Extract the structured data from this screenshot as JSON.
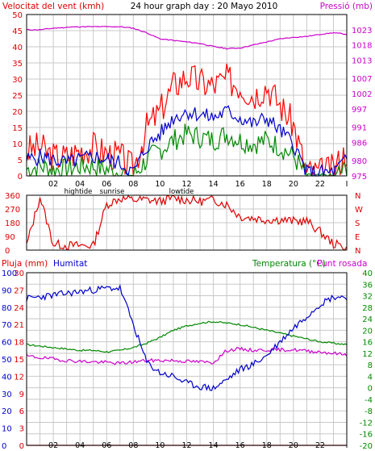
{
  "colors": {
    "wind_gust": "#ff0000",
    "wind_avg": "#0000cc",
    "wind_min": "#008800",
    "pressure": "#cc00cc",
    "direction": "#dd0000",
    "rain": "#dd0000",
    "humidity": "#0000cc",
    "temperature": "#008800",
    "dewpoint": "#cc00cc",
    "grid": "#c8c8c8",
    "frame": "#000000"
  },
  "time_ticks": [
    "02",
    "04",
    "06",
    "08",
    "10",
    "12",
    "14",
    "16",
    "18",
    "20",
    "22",
    "I"
  ],
  "markers": {
    "hightide": "hightide",
    "sunrise": "sunrise",
    "lowtide": "lowtide"
  },
  "chart_data": [
    {
      "type": "line",
      "title": "24 hour graph day : 20 Mayo 2010",
      "ylabel_left": "Velocitat del vent (kmh)",
      "ylabel_right": "Pressió (mb)",
      "ylim_left": [
        0,
        50
      ],
      "ylim_right": [
        975,
        1028
      ],
      "left_ticks": [
        "0",
        "5",
        "10",
        "15",
        "20",
        "25",
        "30",
        "35",
        "40",
        "45",
        "50"
      ],
      "right_ticks": [
        "975",
        "980",
        "986",
        "991",
        "997",
        "1002",
        "1007",
        "1013",
        "1018",
        "1023"
      ],
      "x": [
        0,
        1,
        2,
        3,
        4,
        5,
        6,
        7,
        8,
        9,
        10,
        11,
        12,
        13,
        14,
        15,
        16,
        17,
        18,
        19,
        20,
        21,
        22,
        23,
        24
      ],
      "series": [
        {
          "key": "gust",
          "values": [
            8,
            9,
            6,
            6,
            8,
            9,
            7,
            6,
            2,
            15,
            20,
            28,
            31,
            29,
            28,
            30,
            28,
            25,
            28,
            22,
            16,
            1,
            1,
            2,
            8
          ]
        },
        {
          "key": "avg",
          "values": [
            5,
            6,
            5,
            4,
            5,
            6,
            5,
            4,
            1,
            9,
            13,
            18,
            20,
            19,
            18,
            20,
            18,
            16,
            18,
            14,
            10,
            1,
            1,
            1,
            5
          ]
        },
        {
          "key": "min",
          "values": [
            2,
            3,
            2,
            2,
            3,
            3,
            2,
            1,
            0,
            5,
            8,
            11,
            13,
            12,
            11,
            13,
            11,
            10,
            11,
            9,
            6,
            0,
            0,
            0,
            2
          ]
        },
        {
          "key": "pressure",
          "values": [
            1023,
            1023,
            1023.5,
            1023.8,
            1024,
            1024,
            1024,
            1024,
            1023.5,
            1022,
            1020,
            1019.5,
            1019,
            1018.5,
            1017.5,
            1016.8,
            1017,
            1018,
            1019,
            1020,
            1020.5,
            1020.8,
            1021.5,
            1022,
            1021.5
          ]
        }
      ]
    },
    {
      "type": "line",
      "ylabel_ticks": [
        "360",
        "270",
        "180",
        "90",
        "0"
      ],
      "ylabel_right": [
        "N",
        "W",
        "S",
        "E",
        "N"
      ],
      "ylim": [
        0,
        360
      ],
      "x": [
        0,
        1,
        2,
        3,
        4,
        5,
        6,
        7,
        8,
        9,
        10,
        11,
        12,
        13,
        14,
        15,
        16,
        17,
        18,
        19,
        20,
        21,
        22,
        23,
        24
      ],
      "series": [
        {
          "key": "direction",
          "values": [
            30,
            350,
            40,
            30,
            30,
            30,
            300,
            340,
            330,
            330,
            320,
            340,
            330,
            320,
            330,
            300,
            220,
            210,
            200,
            200,
            190,
            190,
            120,
            40,
            20
          ]
        }
      ]
    },
    {
      "type": "line",
      "ylabel_rain": "Pluja (mm)",
      "ylabel_humidity": "Humitat",
      "ylabel_right": "Temperatura (°C)",
      "ylabel_right2": "Punt rosada",
      "rain_ticks": [
        "0",
        "3",
        "6",
        "9",
        "12",
        "15",
        "18",
        "21",
        "24",
        "27",
        "30"
      ],
      "humidity_ticks": [
        "0",
        "10",
        "20",
        "30",
        "40",
        "50",
        "60",
        "70",
        "80",
        "90",
        "100"
      ],
      "temp_ticks": [
        "-20",
        "-16",
        "-12",
        "-8",
        "-4",
        "0",
        "4",
        "8",
        "12",
        "16",
        "20",
        "24",
        "28",
        "32",
        "36",
        "40"
      ],
      "ylim_humidity": [
        0,
        100
      ],
      "ylim_temp": [
        -20,
        40
      ],
      "x": [
        0,
        1,
        2,
        3,
        4,
        5,
        6,
        7,
        8,
        9,
        10,
        11,
        12,
        13,
        14,
        15,
        16,
        17,
        18,
        19,
        20,
        21,
        22,
        23,
        24
      ],
      "series": [
        {
          "key": "humidity",
          "values": [
            85,
            86,
            87,
            88,
            89,
            90,
            91,
            91,
            70,
            48,
            42,
            40,
            36,
            34,
            33,
            38,
            44,
            47,
            52,
            60,
            68,
            75,
            82,
            86,
            86
          ]
        },
        {
          "key": "temperature",
          "values": [
            15,
            14.5,
            14,
            13.5,
            13,
            13,
            12.5,
            13,
            14,
            15.5,
            17.5,
            20,
            21.5,
            22.5,
            23,
            22.5,
            22,
            21,
            20,
            19,
            18,
            17,
            16,
            15.5,
            15
          ]
        },
        {
          "key": "dewpoint",
          "values": [
            11,
            10.5,
            10,
            9.5,
            9.2,
            9,
            8.8,
            8.5,
            9,
            9.5,
            9.5,
            9.5,
            9.2,
            9,
            8.8,
            13,
            13.5,
            13,
            13.2,
            13.2,
            13.2,
            12.8,
            12.5,
            12,
            11.5
          ]
        },
        {
          "key": "rain",
          "values": [
            0,
            0,
            0,
            0,
            0,
            0,
            0,
            0,
            0,
            0,
            0,
            0,
            0,
            0,
            0,
            0,
            0,
            0,
            0,
            0,
            0,
            0,
            0,
            0,
            0
          ]
        }
      ]
    }
  ]
}
